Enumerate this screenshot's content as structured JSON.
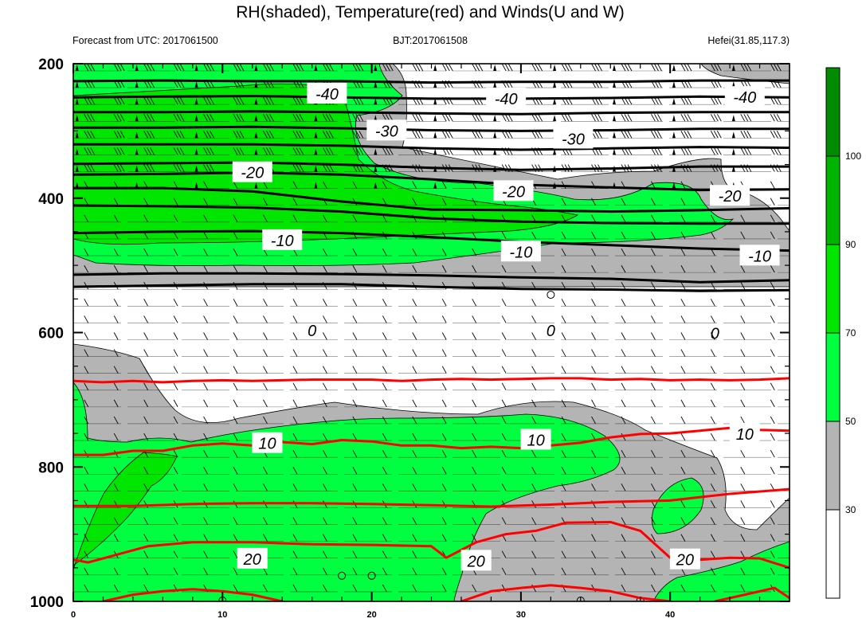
{
  "chart_data": {
    "type": "heatmap",
    "title": "RH(shaded), Temperature(red) and Winds(U and W)",
    "subtitle_left": "Forecast from UTC: 2017061500",
    "subtitle_center": "BJT:2017061508",
    "subtitle_right": "Hefei(31.85,117.3)",
    "x_ticks": [
      "0",
      "10",
      "20",
      "30",
      "40"
    ],
    "x_tick_values": [
      0,
      10,
      20,
      30,
      40
    ],
    "x_range": [
      0,
      48
    ],
    "y_ticks": [
      "200",
      "400",
      "600",
      "800",
      "1000"
    ],
    "y_tick_values": [
      200,
      400,
      600,
      800,
      1000
    ],
    "y_range": [
      200,
      1000
    ],
    "colorbar": {
      "labels": [
        "30",
        "50",
        "70",
        "90",
        "100"
      ],
      "levels": [
        30,
        50,
        70,
        90,
        100
      ],
      "colors": [
        "#ffffff",
        "#b4b4b4",
        "#00ff40",
        "#00e600",
        "#00b400",
        "#008b00"
      ]
    },
    "temperature_labels": [
      {
        "text": "-40",
        "x": 17,
        "p": 245
      },
      {
        "text": "-40",
        "x": 29,
        "p": 252
      },
      {
        "text": "-40",
        "x": 45,
        "p": 250
      },
      {
        "text": "-30",
        "x": 21,
        "p": 300
      },
      {
        "text": "-30",
        "x": 33.5,
        "p": 312
      },
      {
        "text": "-20",
        "x": 12,
        "p": 362
      },
      {
        "text": "-20",
        "x": 29.5,
        "p": 390
      },
      {
        "text": "-20",
        "x": 44,
        "p": 397
      },
      {
        "text": "-10",
        "x": 14,
        "p": 463
      },
      {
        "text": "-10",
        "x": 30,
        "p": 480
      },
      {
        "text": "-10",
        "x": 46,
        "p": 486
      },
      {
        "text": "0",
        "x": 16,
        "p": 597
      },
      {
        "text": "0",
        "x": 32,
        "p": 597
      },
      {
        "text": "0",
        "x": 43,
        "p": 601
      },
      {
        "text": "10",
        "x": 13,
        "p": 765
      },
      {
        "text": "10",
        "x": 31,
        "p": 760
      },
      {
        "text": "10",
        "x": 45,
        "p": 751
      },
      {
        "text": "20",
        "x": 12,
        "p": 937
      },
      {
        "text": "20",
        "x": 27,
        "p": 940
      },
      {
        "text": "20",
        "x": 41,
        "p": 938
      }
    ],
    "isotherms": [
      {
        "level": -40,
        "color": "black",
        "x": [
          0,
          6,
          12,
          18,
          24,
          30,
          36,
          42,
          48
        ],
        "p": [
          226,
          225,
          226,
          226,
          228,
          227,
          227,
          225,
          225
        ]
      },
      {
        "level": -40,
        "color": "black",
        "x": [
          0,
          6,
          12,
          18,
          24,
          30,
          36,
          42,
          48
        ],
        "p": [
          250,
          249,
          248,
          250,
          252,
          252,
          251,
          249,
          250
        ]
      },
      {
        "level": -30,
        "color": "black",
        "x": [
          0,
          6,
          12,
          18,
          24,
          30,
          36,
          42,
          48
        ],
        "p": [
          272,
          272,
          271,
          272,
          274,
          275,
          273,
          272,
          272
        ]
      },
      {
        "level": -30,
        "color": "black",
        "x": [
          0,
          6,
          12,
          18,
          24,
          30,
          36,
          42,
          48
        ],
        "p": [
          295,
          295,
          294,
          296,
          299,
          300,
          299,
          297,
          297
        ]
      },
      {
        "level": -30,
        "color": "black",
        "x": [
          0,
          6,
          12,
          18,
          24,
          30,
          36,
          42,
          48
        ],
        "p": [
          320,
          320,
          320,
          322,
          326,
          328,
          326,
          324,
          325
        ]
      },
      {
        "level": -20,
        "color": "black",
        "x": [
          0,
          6,
          12,
          18,
          24,
          30,
          36,
          42,
          48
        ],
        "p": [
          349,
          348,
          347,
          350,
          355,
          358,
          356,
          353,
          353
        ]
      },
      {
        "level": -20,
        "color": "black",
        "x": [
          0,
          6,
          12,
          18,
          24,
          30,
          36,
          42,
          48
        ],
        "p": [
          365,
          364,
          362,
          365,
          372,
          380,
          384,
          388,
          387
        ]
      },
      {
        "level": -20,
        "color": "black",
        "x": [
          0,
          6,
          12,
          18,
          24,
          30,
          36,
          42,
          48
        ],
        "p": [
          385,
          385,
          390,
          405,
          417,
          418,
          420,
          418,
          415
        ]
      },
      {
        "level": -10,
        "color": "black",
        "x": [
          0,
          6,
          12,
          18,
          24,
          30,
          36,
          42,
          48
        ],
        "p": [
          411,
          412,
          414,
          420,
          430,
          435,
          437,
          438,
          438
        ]
      },
      {
        "level": -10,
        "color": "black",
        "x": [
          0,
          6,
          12,
          18,
          24,
          30,
          36,
          42,
          48
        ],
        "p": [
          452,
          450,
          449,
          452,
          458,
          465,
          470,
          475,
          478
        ]
      },
      {
        "level": -10,
        "color": "black",
        "x": [
          0,
          6,
          12,
          18,
          24,
          30,
          36,
          42,
          48
        ],
        "p": [
          514,
          512,
          512,
          513,
          515,
          518,
          520,
          525,
          522
        ]
      },
      {
        "level": 0,
        "color": "black",
        "x": [
          0,
          6,
          12,
          18,
          24,
          30,
          36,
          42,
          48
        ],
        "p": [
          532,
          530,
          528,
          528,
          532,
          535,
          536,
          538,
          537
        ]
      },
      {
        "level": 10,
        "color": "red",
        "x": [
          0,
          2,
          4,
          6,
          8,
          10,
          12,
          14,
          16,
          18,
          20,
          22,
          24,
          26,
          28,
          30,
          32,
          34,
          36,
          38,
          40,
          42,
          44,
          46,
          48
        ],
        "p": [
          672,
          674,
          672,
          674,
          672,
          671,
          672,
          671,
          670,
          670,
          670,
          672,
          670,
          669,
          670,
          669,
          668,
          668,
          670,
          669,
          671,
          670,
          671,
          670,
          668
        ]
      },
      {
        "level": 10,
        "color": "red",
        "x": [
          0,
          2,
          4,
          6,
          8,
          10,
          12,
          14,
          16,
          18,
          20,
          22,
          24,
          26,
          28,
          30,
          32,
          34,
          36,
          38,
          40,
          42,
          44,
          46,
          48
        ],
        "p": [
          782,
          782,
          776,
          776,
          768,
          765,
          768,
          763,
          766,
          760,
          762,
          768,
          768,
          772,
          770,
          772,
          768,
          764,
          756,
          751,
          750,
          746,
          742,
          745,
          746
        ]
      },
      {
        "level": 20,
        "color": "red",
        "x": [
          0,
          4,
          8,
          12,
          16,
          20,
          24,
          28,
          32,
          36,
          40,
          44,
          48
        ],
        "p": [
          858,
          858,
          855,
          854,
          854,
          855,
          857,
          859,
          856,
          852,
          850,
          840,
          833
        ]
      },
      {
        "level": 20,
        "color": "red",
        "x": [
          0,
          1,
          3,
          5,
          8,
          12,
          16,
          20,
          24,
          25,
          27,
          29,
          31,
          33,
          36,
          38,
          40,
          42,
          44,
          46,
          48
        ],
        "p": [
          938,
          942,
          930,
          918,
          912,
          912,
          915,
          916,
          918,
          935,
          912,
          900,
          895,
          883,
          882,
          895,
          935,
          938,
          935,
          936,
          950
        ]
      },
      {
        "level": 20,
        "color": "red",
        "x": [
          2,
          4,
          6,
          8,
          10,
          12,
          14
        ],
        "p": [
          1000,
          990,
          985,
          982,
          985,
          990,
          1000
        ]
      },
      {
        "level": 20,
        "color": "red",
        "x": [
          26,
          28,
          30,
          32,
          34,
          36,
          38,
          40
        ],
        "p": [
          1000,
          985,
          980,
          976,
          980,
          985,
          995,
          1000
        ]
      },
      {
        "level": 20,
        "color": "red",
        "x": [
          43,
          45,
          47,
          48
        ],
        "p": [
          1000,
          990,
          980,
          995
        ]
      }
    ]
  }
}
